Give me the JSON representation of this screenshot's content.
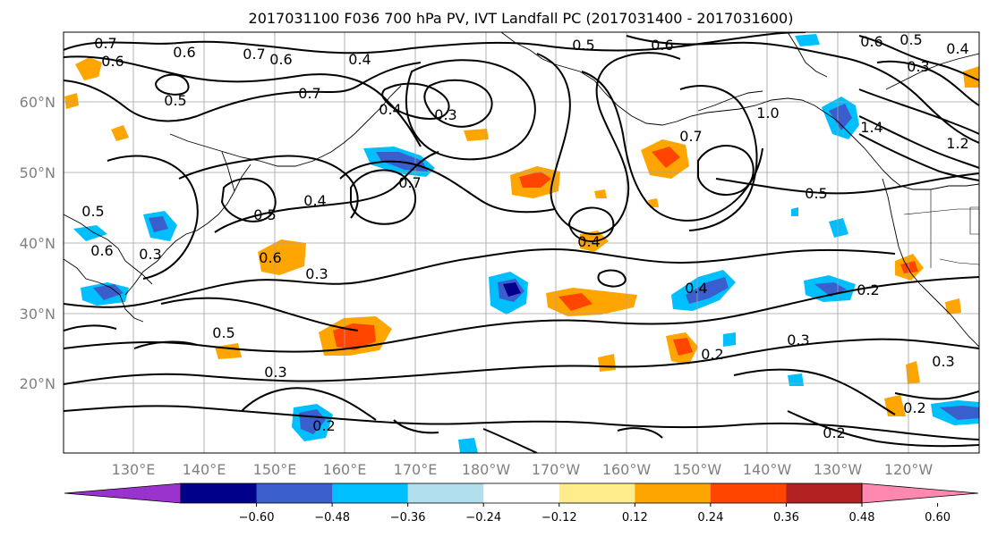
{
  "title": "2017031100 F036 700 hPa PV, IVT Landfall PC (2017031400 - 2017031600)",
  "lat_labels": [
    "60°N",
    "50°N",
    "40°N",
    "30°N",
    "20°N"
  ],
  "lon_labels": [
    "130°E",
    "140°E",
    "150°E",
    "160°E",
    "170°E",
    "180°W",
    "170°W",
    "160°W",
    "150°W",
    "140°W",
    "130°W",
    "120°W"
  ],
  "colorbar": {
    "colors": [
      "#9a32cd",
      "#00008b",
      "#3a5fcd",
      "#00bfff",
      "#b2dfee",
      "#ffffff",
      "#ffec8b",
      "#ffa500",
      "#ff4500",
      "#b22222",
      "#ff88b0"
    ],
    "tick_labels": [
      "−0.60",
      "−0.48",
      "−0.36",
      "−0.24",
      "−0.12",
      "0.12",
      "0.24",
      "0.36",
      "0.48",
      "0.60"
    ]
  },
  "contour_labels": [
    "0.7",
    "0.6",
    "0.6",
    "0.7",
    "0.6",
    "0.4",
    "0.3",
    "0.5",
    "0.6",
    "0.6",
    "0.5",
    "0.4",
    "0.3",
    "0.5",
    "0.7",
    "0.4",
    "0.7",
    "0.5",
    "0.5",
    "0.4",
    "0.3",
    "0.4",
    "0.6",
    "0.3",
    "0.5",
    "0.6",
    "0.3",
    "0.7",
    "0.5",
    "0.4",
    "0.2",
    "0.3",
    "0.2",
    "0.3",
    "0.2",
    "0.2",
    "0.2",
    "1.4",
    "1.2",
    "1.0"
  ]
}
